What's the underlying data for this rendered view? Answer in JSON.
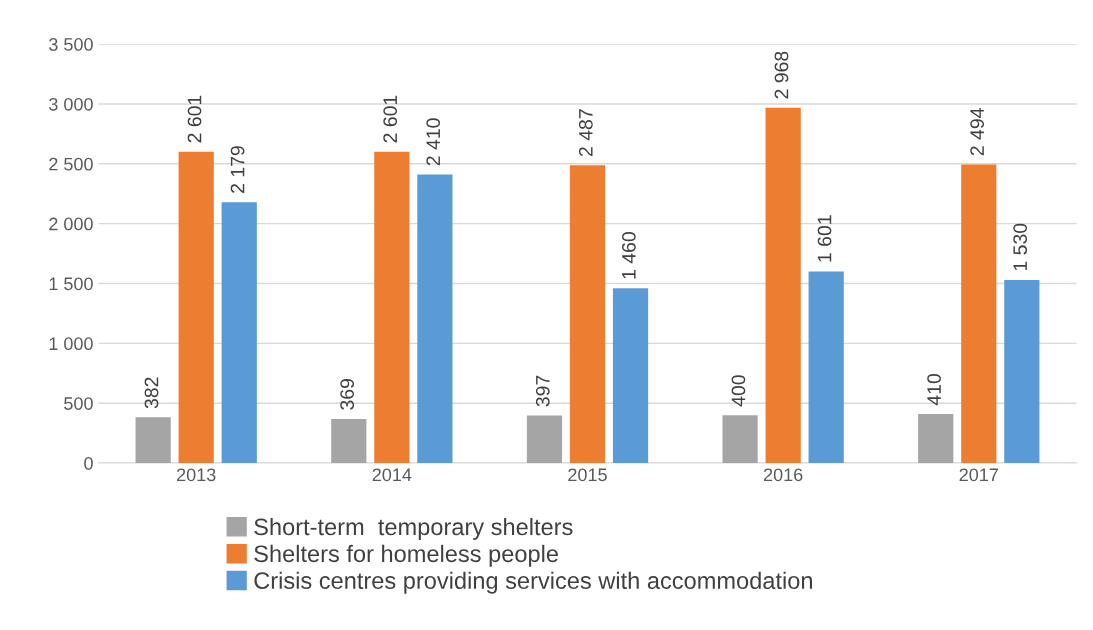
{
  "chart_data": {
    "type": "bar",
    "categories": [
      "2013",
      "2014",
      "2015",
      "2016",
      "2017"
    ],
    "series": [
      {
        "name": "Short-term  temporary shelters",
        "color": "#a5a5a5",
        "values": [
          382,
          369,
          397,
          400,
          410
        ],
        "value_labels": [
          "382",
          "369",
          "397",
          "400",
          "410"
        ]
      },
      {
        "name": "Shelters for homeless people",
        "color": "#ed7d31",
        "values": [
          2601,
          2601,
          2487,
          2968,
          2494
        ],
        "value_labels": [
          "2 601",
          "2 601",
          "2 487",
          "2 968",
          "2 494"
        ]
      },
      {
        "name": "Crisis centres providing services with accommodation",
        "color": "#5b9bd5",
        "values": [
          2179,
          2410,
          1460,
          1601,
          1530
        ],
        "value_labels": [
          "2 179",
          "2 410",
          "1 460",
          "1 601",
          "1 530"
        ]
      }
    ],
    "ylim": [
      0,
      3500
    ],
    "yticks": [
      {
        "value": 0,
        "label": "0"
      },
      {
        "value": 500,
        "label": "500"
      },
      {
        "value": 1000,
        "label": "1 000"
      },
      {
        "value": 1500,
        "label": "1 500"
      },
      {
        "value": 2000,
        "label": "2 000"
      },
      {
        "value": 2500,
        "label": "2 500"
      },
      {
        "value": 3000,
        "label": "3 000"
      },
      {
        "value": 3500,
        "label": "3 500"
      }
    ],
    "grid": "y",
    "legend": "bottom"
  }
}
